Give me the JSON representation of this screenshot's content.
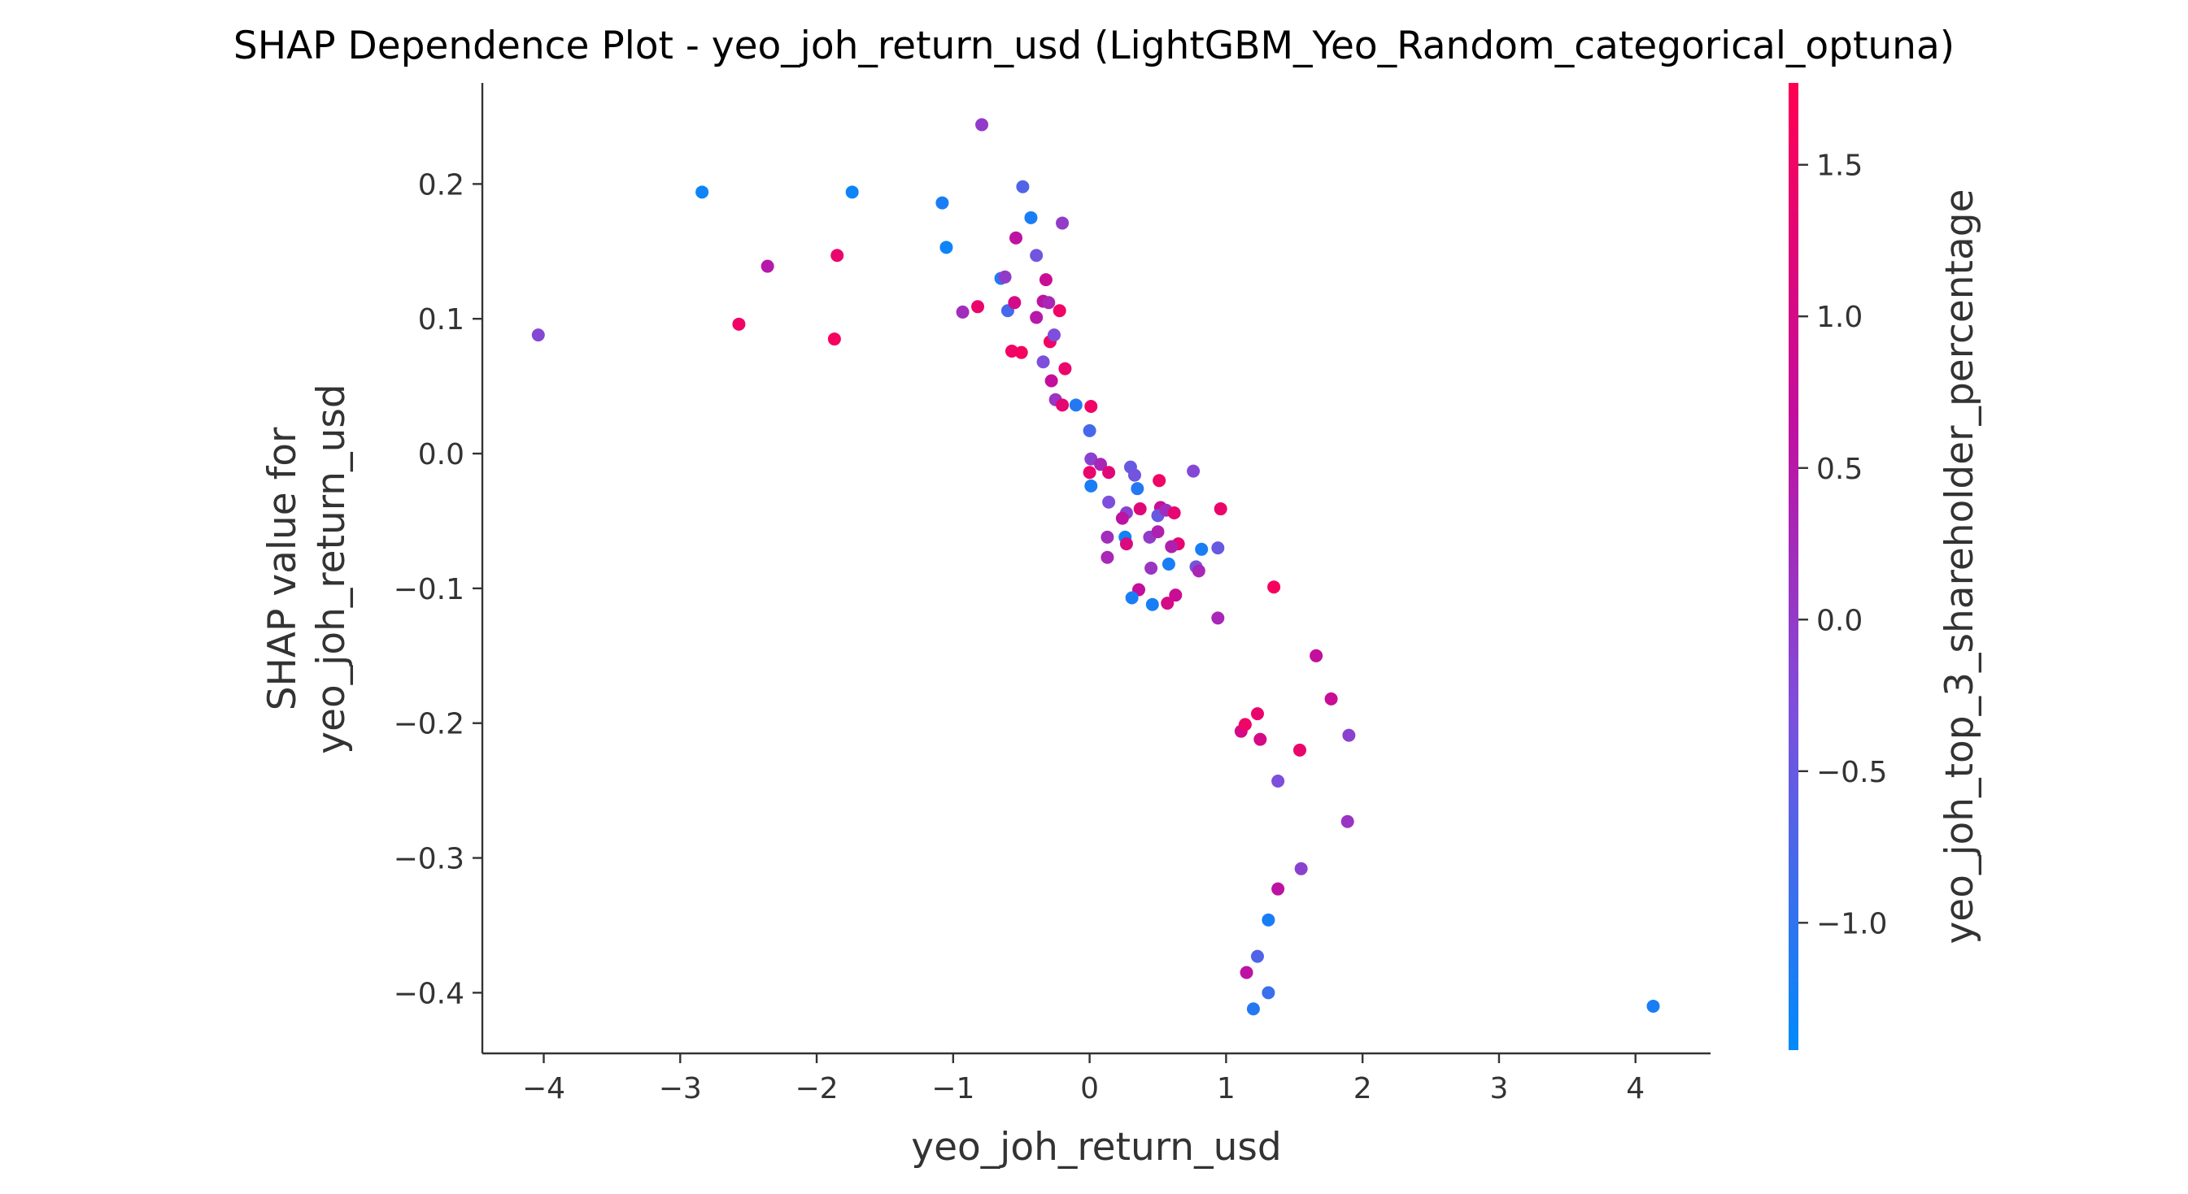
{
  "chart_data": {
    "type": "scatter",
    "title": "SHAP Dependence Plot - yeo_joh_return_usd (LightGBM_Yeo_Random_categorical_optuna)",
    "xlabel": "yeo_joh_return_usd",
    "ylabel_lines": [
      "SHAP value for",
      "yeo_joh_return_usd"
    ],
    "colorbar_label": "yeo_joh_top_3_shareholder_percentage",
    "xlim": [
      -4.45,
      4.55
    ],
    "ylim": [
      -0.445,
      0.275
    ],
    "x_ticks": [
      -4,
      -3,
      -2,
      -1,
      0,
      1,
      2,
      3,
      4
    ],
    "x_tick_labels": [
      "−4",
      "−3",
      "−2",
      "−1",
      "0",
      "1",
      "2",
      "3",
      "4"
    ],
    "y_ticks": [
      0.2,
      0.1,
      0.0,
      -0.1,
      -0.2,
      -0.3,
      -0.4
    ],
    "y_tick_labels": [
      "0.2",
      "0.1",
      "0.0",
      "−0.1",
      "−0.2",
      "−0.3",
      "−0.4"
    ],
    "color_range": [
      -1.42,
      1.77
    ],
    "color_ticks": [
      1.5,
      1.0,
      0.5,
      0.0,
      -0.5,
      -1.0
    ],
    "color_tick_labels": [
      "1.5",
      "1.0",
      "0.5",
      "0.0",
      "−0.5",
      "−1.0"
    ],
    "colormap": [
      "#008afb",
      "#7d4fdc",
      "#c10f9f",
      "#ff0052"
    ],
    "grid": false,
    "points": [
      {
        "x": -4.04,
        "y": 0.088,
        "c": -0.2
      },
      {
        "x": -2.84,
        "y": 0.194,
        "c": -1.3
      },
      {
        "x": -2.57,
        "y": 0.096,
        "c": 1.5
      },
      {
        "x": -2.36,
        "y": 0.139,
        "c": 0.5
      },
      {
        "x": -1.85,
        "y": 0.147,
        "c": 1.4
      },
      {
        "x": -1.87,
        "y": 0.085,
        "c": 1.6
      },
      {
        "x": -1.74,
        "y": 0.194,
        "c": -1.3
      },
      {
        "x": -1.08,
        "y": 0.186,
        "c": -1.2
      },
      {
        "x": -1.05,
        "y": 0.153,
        "c": -1.3
      },
      {
        "x": -0.79,
        "y": 0.244,
        "c": 0.0
      },
      {
        "x": -0.93,
        "y": 0.105,
        "c": 0.2
      },
      {
        "x": -0.82,
        "y": 0.109,
        "c": 1.4
      },
      {
        "x": -0.65,
        "y": 0.13,
        "c": -1.1
      },
      {
        "x": -0.62,
        "y": 0.131,
        "c": 0.0
      },
      {
        "x": -0.6,
        "y": 0.106,
        "c": -0.8
      },
      {
        "x": -0.55,
        "y": 0.112,
        "c": 1.0
      },
      {
        "x": -0.49,
        "y": 0.198,
        "c": -0.7
      },
      {
        "x": -0.43,
        "y": 0.175,
        "c": -1.2
      },
      {
        "x": -0.54,
        "y": 0.16,
        "c": 0.6
      },
      {
        "x": -0.39,
        "y": 0.147,
        "c": -0.4
      },
      {
        "x": -0.32,
        "y": 0.129,
        "c": 0.8
      },
      {
        "x": -0.2,
        "y": 0.171,
        "c": 0.0
      },
      {
        "x": -0.34,
        "y": 0.113,
        "c": 0.6
      },
      {
        "x": -0.3,
        "y": 0.112,
        "c": 0.3
      },
      {
        "x": -0.22,
        "y": 0.106,
        "c": 1.5
      },
      {
        "x": -0.39,
        "y": 0.101,
        "c": 0.5
      },
      {
        "x": -0.29,
        "y": 0.083,
        "c": 1.5
      },
      {
        "x": -0.26,
        "y": 0.088,
        "c": -0.3
      },
      {
        "x": -0.57,
        "y": 0.076,
        "c": 1.5
      },
      {
        "x": -0.5,
        "y": 0.075,
        "c": 1.6
      },
      {
        "x": -0.34,
        "y": 0.068,
        "c": -0.3
      },
      {
        "x": -0.18,
        "y": 0.063,
        "c": 1.4
      },
      {
        "x": -0.28,
        "y": 0.054,
        "c": 0.7
      },
      {
        "x": -0.25,
        "y": 0.04,
        "c": 0.1
      },
      {
        "x": -0.2,
        "y": 0.036,
        "c": 1.3
      },
      {
        "x": -0.1,
        "y": 0.036,
        "c": -1.1
      },
      {
        "x": 0.01,
        "y": 0.035,
        "c": 1.5
      },
      {
        "x": 0.0,
        "y": 0.017,
        "c": -0.8
      },
      {
        "x": 0.01,
        "y": -0.004,
        "c": -0.1
      },
      {
        "x": 0.08,
        "y": -0.008,
        "c": 0.3
      },
      {
        "x": 0.0,
        "y": -0.014,
        "c": 1.4
      },
      {
        "x": 0.14,
        "y": -0.014,
        "c": 1.2
      },
      {
        "x": 0.01,
        "y": -0.024,
        "c": -1.2
      },
      {
        "x": 0.3,
        "y": -0.01,
        "c": -0.5
      },
      {
        "x": 0.33,
        "y": -0.016,
        "c": -0.4
      },
      {
        "x": 0.35,
        "y": -0.026,
        "c": -1.1
      },
      {
        "x": 0.51,
        "y": -0.02,
        "c": 1.5
      },
      {
        "x": 0.76,
        "y": -0.013,
        "c": -0.2
      },
      {
        "x": 0.14,
        "y": -0.036,
        "c": -0.3
      },
      {
        "x": 0.27,
        "y": -0.044,
        "c": -0.1
      },
      {
        "x": 0.24,
        "y": -0.048,
        "c": 0.6
      },
      {
        "x": 0.37,
        "y": -0.041,
        "c": 1.2
      },
      {
        "x": 0.52,
        "y": -0.04,
        "c": 0.8
      },
      {
        "x": 0.5,
        "y": -0.046,
        "c": -0.5
      },
      {
        "x": 0.56,
        "y": -0.042,
        "c": 0.2
      },
      {
        "x": 0.62,
        "y": -0.044,
        "c": 1.3
      },
      {
        "x": 0.96,
        "y": -0.041,
        "c": 1.4
      },
      {
        "x": 0.13,
        "y": -0.062,
        "c": 0.2
      },
      {
        "x": 0.26,
        "y": -0.062,
        "c": -1.3
      },
      {
        "x": 0.44,
        "y": -0.062,
        "c": 0.0
      },
      {
        "x": 0.5,
        "y": -0.058,
        "c": 0.4
      },
      {
        "x": 0.27,
        "y": -0.067,
        "c": 1.1
      },
      {
        "x": 0.65,
        "y": -0.067,
        "c": 1.3
      },
      {
        "x": 0.6,
        "y": -0.069,
        "c": 0.4
      },
      {
        "x": 0.82,
        "y": -0.071,
        "c": -1.2
      },
      {
        "x": 0.94,
        "y": -0.07,
        "c": -0.5
      },
      {
        "x": 0.13,
        "y": -0.077,
        "c": 0.3
      },
      {
        "x": 0.45,
        "y": -0.085,
        "c": 0.1
      },
      {
        "x": 0.58,
        "y": -0.082,
        "c": -1.2
      },
      {
        "x": 0.78,
        "y": -0.084,
        "c": -0.4
      },
      {
        "x": 0.8,
        "y": -0.087,
        "c": 0.3
      },
      {
        "x": 0.36,
        "y": -0.101,
        "c": 0.7
      },
      {
        "x": 0.63,
        "y": -0.105,
        "c": 0.8
      },
      {
        "x": 0.31,
        "y": -0.107,
        "c": -1.2
      },
      {
        "x": 0.46,
        "y": -0.112,
        "c": -1.2
      },
      {
        "x": 0.57,
        "y": -0.111,
        "c": 1.0
      },
      {
        "x": 0.94,
        "y": -0.122,
        "c": 0.3
      },
      {
        "x": 1.35,
        "y": -0.099,
        "c": 1.6
      },
      {
        "x": 1.66,
        "y": -0.15,
        "c": 0.7
      },
      {
        "x": 1.77,
        "y": -0.182,
        "c": 0.8
      },
      {
        "x": 1.11,
        "y": -0.206,
        "c": 1.0
      },
      {
        "x": 1.14,
        "y": -0.201,
        "c": 1.5
      },
      {
        "x": 1.23,
        "y": -0.193,
        "c": 1.4
      },
      {
        "x": 1.25,
        "y": -0.212,
        "c": 1.0
      },
      {
        "x": 1.54,
        "y": -0.22,
        "c": 1.4
      },
      {
        "x": 1.9,
        "y": -0.209,
        "c": -0.1
      },
      {
        "x": 1.38,
        "y": -0.243,
        "c": -0.3
      },
      {
        "x": 1.89,
        "y": -0.273,
        "c": 0.1
      },
      {
        "x": 1.55,
        "y": -0.308,
        "c": -0.1
      },
      {
        "x": 1.38,
        "y": -0.323,
        "c": 0.6
      },
      {
        "x": 1.31,
        "y": -0.346,
        "c": -1.2
      },
      {
        "x": 1.15,
        "y": -0.385,
        "c": 0.6
      },
      {
        "x": 1.23,
        "y": -0.373,
        "c": -0.7
      },
      {
        "x": 1.31,
        "y": -0.4,
        "c": -0.9
      },
      {
        "x": 1.2,
        "y": -0.412,
        "c": -1.1
      },
      {
        "x": 4.13,
        "y": -0.41,
        "c": -1.2
      }
    ]
  }
}
